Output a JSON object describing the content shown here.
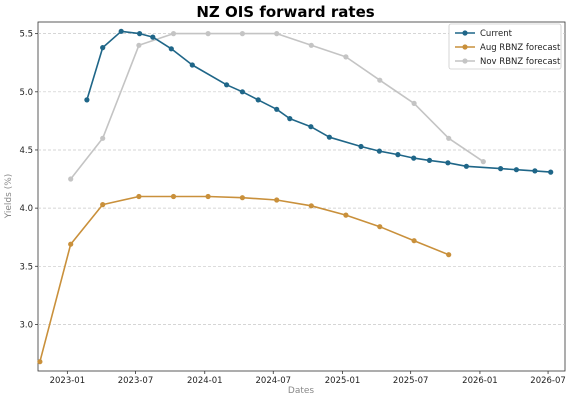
{
  "chart_data": {
    "type": "line",
    "title": "NZ OIS forward rates",
    "xlabel": "Dates",
    "ylabel": "Yields (%)",
    "ylim": [
      2.6,
      5.6
    ],
    "xlim": [
      "2022-10-15",
      "2026-08-15"
    ],
    "y_ticks": [
      "3.0",
      "3.5",
      "4.0",
      "4.5",
      "5.0",
      "5.5"
    ],
    "x_ticks": [
      "2023-01",
      "2023-07",
      "2024-01",
      "2024-07",
      "2025-01",
      "2025-07",
      "2026-01",
      "2026-07"
    ],
    "grid": "horizontal",
    "legend_position": "top-right",
    "series": [
      {
        "name": "Current",
        "color": "#1f6688",
        "points": [
          [
            "2023-02-22",
            4.93
          ],
          [
            "2023-04-05",
            5.38
          ],
          [
            "2023-05-24",
            5.52
          ],
          [
            "2023-07-12",
            5.5
          ],
          [
            "2023-08-16",
            5.47
          ],
          [
            "2023-10-04",
            5.37
          ],
          [
            "2023-11-29",
            5.23
          ],
          [
            "2024-02-28",
            5.06
          ],
          [
            "2024-04-10",
            5.0
          ],
          [
            "2024-05-22",
            4.93
          ],
          [
            "2024-07-10",
            4.85
          ],
          [
            "2024-08-14",
            4.77
          ],
          [
            "2024-10-09",
            4.7
          ],
          [
            "2024-11-27",
            4.61
          ],
          [
            "2025-02-19",
            4.53
          ],
          [
            "2025-04-09",
            4.49
          ],
          [
            "2025-05-28",
            4.46
          ],
          [
            "2025-07-09",
            4.43
          ],
          [
            "2025-08-20",
            4.41
          ],
          [
            "2025-10-08",
            4.39
          ],
          [
            "2025-11-26",
            4.36
          ],
          [
            "2026-02-25",
            4.34
          ],
          [
            "2026-04-08",
            4.33
          ],
          [
            "2026-05-27",
            4.32
          ],
          [
            "2026-07-08",
            4.31
          ]
        ]
      },
      {
        "name": "Aug RBNZ forecast",
        "color": "#c9903b",
        "points": [
          [
            "2022-10-20",
            2.68
          ],
          [
            "2023-01-10",
            3.69
          ],
          [
            "2023-04-05",
            4.03
          ],
          [
            "2023-07-10",
            4.1
          ],
          [
            "2023-10-10",
            4.1
          ],
          [
            "2024-01-10",
            4.1
          ],
          [
            "2024-04-10",
            4.09
          ],
          [
            "2024-07-10",
            4.07
          ],
          [
            "2024-10-10",
            4.02
          ],
          [
            "2025-01-10",
            3.94
          ],
          [
            "2025-04-10",
            3.84
          ],
          [
            "2025-07-10",
            3.72
          ],
          [
            "2025-10-10",
            3.6
          ]
        ]
      },
      {
        "name": "Nov RBNZ forecast",
        "color": "#c4c4c4",
        "points": [
          [
            "2023-01-10",
            4.25
          ],
          [
            "2023-04-05",
            4.6
          ],
          [
            "2023-07-10",
            5.4
          ],
          [
            "2023-10-10",
            5.5
          ],
          [
            "2024-01-10",
            5.5
          ],
          [
            "2024-04-10",
            5.5
          ],
          [
            "2024-07-10",
            5.5
          ],
          [
            "2024-10-10",
            5.4
          ],
          [
            "2025-01-10",
            5.3
          ],
          [
            "2025-04-10",
            5.1
          ],
          [
            "2025-07-10",
            4.9
          ],
          [
            "2025-10-10",
            4.6
          ],
          [
            "2026-01-10",
            4.4
          ]
        ]
      }
    ]
  }
}
